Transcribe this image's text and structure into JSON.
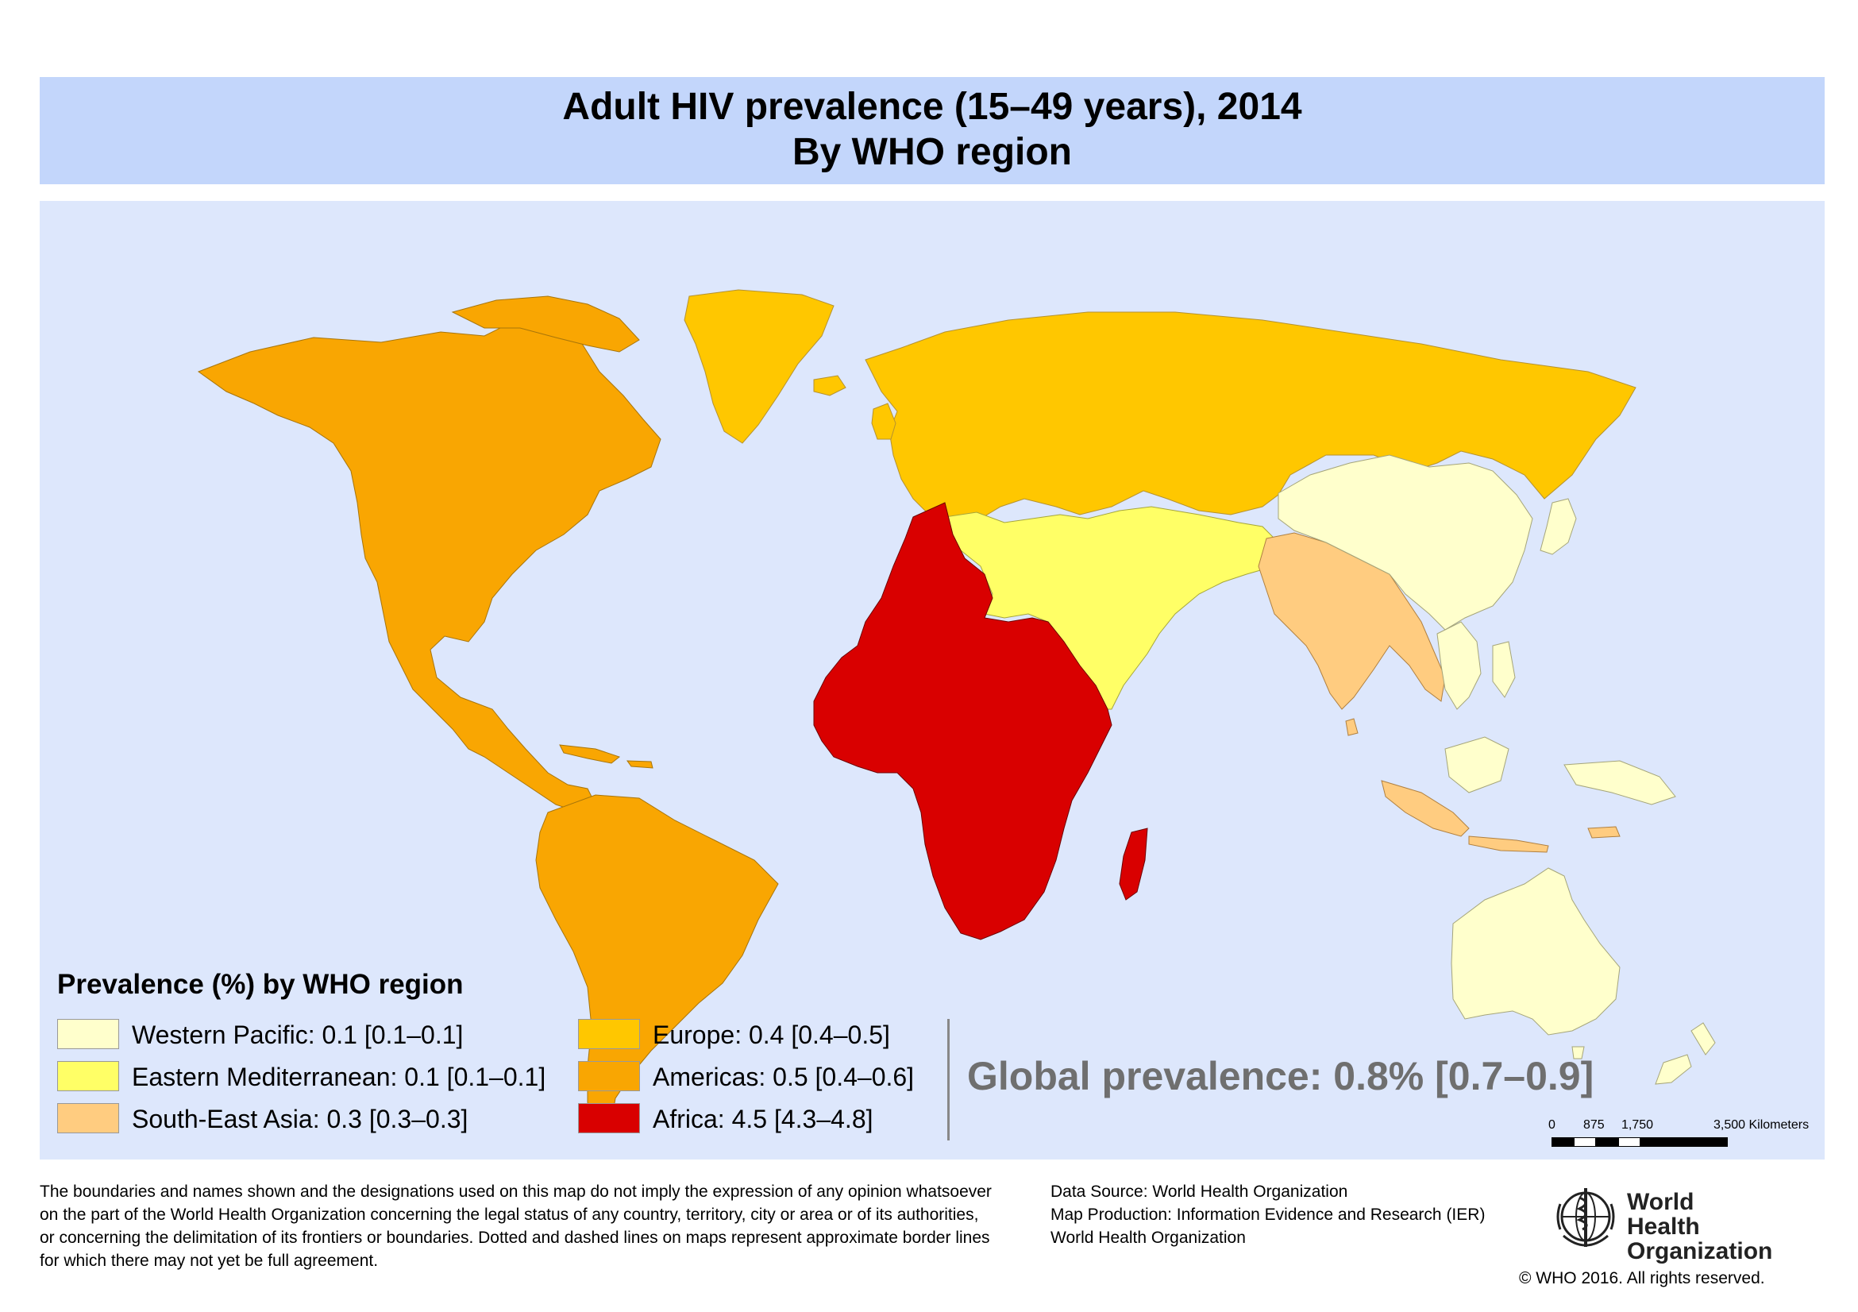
{
  "title": {
    "line1": "Adult HIV prevalence (15–49 years), 2014",
    "line2": "By WHO region"
  },
  "legend": {
    "title": "Prevalence (%) by WHO region",
    "items": [
      {
        "label": "Western Pacific: 0.1 [0.1–0.1]",
        "color": "#ffffcc",
        "region": "Western Pacific",
        "value": 0.1
      },
      {
        "label": "Eastern Mediterranean: 0.1 [0.1–0.1]",
        "color": "#ffff66",
        "region": "Eastern Mediterranean",
        "value": 0.1
      },
      {
        "label": "South-East Asia: 0.3 [0.3–0.3]",
        "color": "#ffcc80",
        "region": "South-East Asia",
        "value": 0.3
      },
      {
        "label": "Europe: 0.4 [0.4–0.5]",
        "color": "#ffc700",
        "region": "Europe",
        "value": 0.4
      },
      {
        "label": "Americas: 0.5 [0.4–0.6]",
        "color": "#f9a602",
        "region": "Americas",
        "value": 0.5
      },
      {
        "label": "Africa: 4.5 [4.3–4.8]",
        "color": "#d90000",
        "region": "Africa",
        "value": 4.5
      }
    ]
  },
  "global_prevalence": "Global prevalence: 0.8% [0.7–0.9]",
  "scale_bar": {
    "ticks": [
      "0",
      "875",
      "1,750",
      "3,500 Kilometers"
    ]
  },
  "colors": {
    "ocean": "#dde7fc",
    "title_band": "#c3d6fb",
    "global_text": "#6f6f6f"
  },
  "disclaimer": [
    "The boundaries and names shown and the designations used on this map do not imply the expression of any opinion whatsoever",
    "on the part of the World Health Organization concerning the legal status of any country, territory, city or area or of its authorities,",
    "or concerning the delimitation of its frontiers or boundaries. Dotted and dashed lines on maps represent approximate border lines",
    "for which there may not yet be full agreement."
  ],
  "source": [
    "Data Source: World Health Organization",
    "Map Production: Information Evidence and Research (IER)",
    "World Health Organization"
  ],
  "logo": {
    "line1": "World Health",
    "line2": "Organization",
    "icon": "who-emblem-icon"
  },
  "copyright": "© WHO 2016. All rights reserved."
}
